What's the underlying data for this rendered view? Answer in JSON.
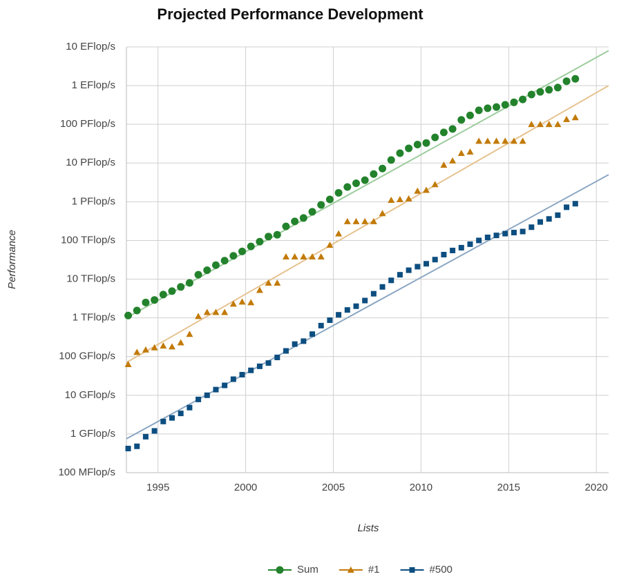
{
  "chart_data": {
    "type": "scatter",
    "title": "Projected Performance Development",
    "x_label": "Lists",
    "y_label": "Performance",
    "log_y": true,
    "grid": true,
    "legend": "bottom",
    "xlim": [
      1993.2,
      2020.7
    ],
    "xticks": [
      1995,
      2000,
      2005,
      2010,
      2015,
      2020
    ],
    "ylim": [
      100000000.0,
      1e+19
    ],
    "yticks": [
      {
        "value": 100000000.0,
        "label": "100 MFlop/s"
      },
      {
        "value": 1000000000.0,
        "label": "1 GFlop/s"
      },
      {
        "value": 10000000000.0,
        "label": "10 GFlop/s"
      },
      {
        "value": 100000000000.0,
        "label": "100 GFlop/s"
      },
      {
        "value": 1000000000000.0,
        "label": "1 TFlop/s"
      },
      {
        "value": 10000000000000.0,
        "label": "10 TFlop/s"
      },
      {
        "value": 100000000000000.0,
        "label": "100 TFlop/s"
      },
      {
        "value": 1000000000000000.0,
        "label": "1 PFlop/s"
      },
      {
        "value": 1e+16,
        "label": "10 PFlop/s"
      },
      {
        "value": 1e+17,
        "label": "100 PFlop/s"
      },
      {
        "value": 1e+18,
        "label": "1 EFlop/s"
      },
      {
        "value": 1e+19,
        "label": "10 EFlop/s"
      }
    ],
    "x": [
      1993.3,
      1993.8,
      1994.3,
      1994.8,
      1995.3,
      1995.8,
      1996.3,
      1996.8,
      1997.3,
      1997.8,
      1998.3,
      1998.8,
      1999.3,
      1999.8,
      2000.3,
      2000.8,
      2001.3,
      2001.8,
      2002.3,
      2002.8,
      2003.3,
      2003.8,
      2004.3,
      2004.8,
      2005.3,
      2005.8,
      2006.3,
      2006.8,
      2007.3,
      2007.8,
      2008.3,
      2008.8,
      2009.3,
      2009.8,
      2010.3,
      2010.8,
      2011.3,
      2011.8,
      2012.3,
      2012.8,
      2013.3,
      2013.8,
      2014.3,
      2014.8,
      2015.3,
      2015.8,
      2016.3,
      2016.8,
      2017.3,
      2017.8,
      2018.3,
      2018.8
    ],
    "series": [
      {
        "name": "Sum",
        "color": "#23822c",
        "marker": "circle",
        "values": [
          1150000000000.0,
          1550000000000.0,
          2500000000000.0,
          2900000000000.0,
          4000000000000.0,
          4900000000000.0,
          6300000000000.0,
          8000000000000.0,
          13000000000000.0,
          17000000000000.0,
          23000000000000.0,
          30000000000000.0,
          40000000000000.0,
          52000000000000.0,
          70000000000000.0,
          93000000000000.0,
          126000000000000.0,
          140000000000000.0,
          230000000000000.0,
          310000000000000.0,
          380000000000000.0,
          550000000000000.0,
          830000000000000.0,
          1150000000000000.0,
          1700000000000000.0,
          2400000000000000.0,
          3000000000000000.0,
          3600000000000000.0,
          5200000000000000.0,
          7200000000000000.0,
          1.2e+16,
          1.8e+16,
          2.4e+16,
          3e+16,
          3.3e+16,
          4.6e+16,
          6.2e+16,
          7.6e+16,
          1.3e+17,
          1.7e+17,
          2.3e+17,
          2.6e+17,
          2.8e+17,
          3.2e+17,
          3.7e+17,
          4.4e+17,
          5.9e+17,
          6.9e+17,
          7.8e+17,
          8.9e+17,
          1.3e+18,
          1.5e+18
        ],
        "trend": {
          "x": [
            1993.2,
            2020.7
          ],
          "values": [
            1000000000000.0,
            8e+18
          ],
          "color": "#9ccc9c"
        }
      },
      {
        "name": "#1",
        "color": "#c27a08",
        "marker": "triangle",
        "values": [
          63000000000.0,
          130000000000.0,
          150000000000.0,
          170000000000.0,
          190000000000.0,
          180000000000.0,
          230000000000.0,
          380000000000.0,
          1100000000000.0,
          1400000000000.0,
          1400000000000.0,
          1400000000000.0,
          2300000000000.0,
          2600000000000.0,
          2500000000000.0,
          5200000000000.0,
          8000000000000.0,
          8000000000000.0,
          38000000000000.0,
          38000000000000.0,
          38000000000000.0,
          38000000000000.0,
          38000000000000.0,
          76000000000000.0,
          150000000000000.0,
          310000000000000.0,
          310000000000000.0,
          310000000000000.0,
          310000000000000.0,
          500000000000000.0,
          1100000000000000.0,
          1150000000000000.0,
          1200000000000000.0,
          1900000000000000.0,
          2000000000000000.0,
          2800000000000000.0,
          8900000000000000.0,
          1.15e+16,
          1.8e+16,
          1.95e+16,
          3.7e+16,
          3.7e+16,
          3.7e+16,
          3.7e+16,
          3.7e+16,
          3.7e+16,
          1e+17,
          1e+17,
          1e+17,
          1e+17,
          1.35e+17,
          1.5e+17
        ],
        "trend": {
          "x": [
            1993.2,
            2020.7
          ],
          "values": [
            70000000000.0,
            1e+18
          ],
          "color": "#e6c28f"
        }
      },
      {
        "name": "#500",
        "color": "#0d4e80",
        "marker": "square",
        "values": [
          420000000.0,
          480000000.0,
          850000000.0,
          1200000000.0,
          2100000000.0,
          2600000000.0,
          3400000000.0,
          4800000000.0,
          7800000000.0,
          10000000000.0,
          14000000000.0,
          18000000000.0,
          26000000000.0,
          34000000000.0,
          44000000000.0,
          56000000000.0,
          68000000000.0,
          95000000000.0,
          140000000000.0,
          210000000000.0,
          250000000000.0,
          380000000000.0,
          630000000000.0,
          870000000000.0,
          1200000000000.0,
          1600000000000.0,
          2000000000000.0,
          2800000000000.0,
          4200000000000.0,
          6300000000000.0,
          9300000000000.0,
          13000000000000.0,
          17000000000000.0,
          21000000000000.0,
          25000000000000.0,
          32000000000000.0,
          43000000000000.0,
          55000000000000.0,
          65000000000000.0,
          80000000000000.0,
          100000000000000.0,
          120000000000000.0,
          135000000000000.0,
          150000000000000.0,
          160000000000000.0,
          170000000000000.0,
          220000000000000.0,
          300000000000000.0,
          360000000000000.0,
          450000000000000.0,
          720000000000000.0,
          890000000000000.0
        ],
        "trend": {
          "x": [
            1993.2,
            2020.7
          ],
          "values": [
            750000000.0,
            5000000000000000.0
          ],
          "color": "#8ba7c3"
        }
      }
    ]
  }
}
